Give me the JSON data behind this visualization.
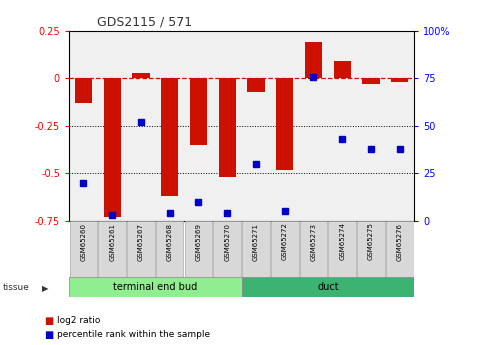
{
  "title": "GDS2115 / 571",
  "samples": [
    "GSM65260",
    "GSM65261",
    "GSM65267",
    "GSM65268",
    "GSM65269",
    "GSM65270",
    "GSM65271",
    "GSM65272",
    "GSM65273",
    "GSM65274",
    "GSM65275",
    "GSM65276"
  ],
  "log2_ratio": [
    -0.13,
    -0.73,
    0.03,
    -0.62,
    -0.35,
    -0.52,
    -0.07,
    -0.48,
    0.19,
    0.09,
    -0.03,
    -0.02
  ],
  "percentile_rank": [
    20,
    3,
    52,
    4,
    10,
    4,
    30,
    5,
    76,
    43,
    38,
    38
  ],
  "tissue_groups": [
    {
      "label": "terminal end bud",
      "start": 0,
      "end": 6,
      "color": "#90ee90"
    },
    {
      "label": "duct",
      "start": 6,
      "end": 12,
      "color": "#3cb371"
    }
  ],
  "ylim_left": [
    -0.75,
    0.25
  ],
  "ylim_right": [
    0,
    100
  ],
  "bar_color": "#cc1100",
  "dot_color": "#0000cc",
  "zero_line_color": "#cc1100",
  "hline_color": "#000000",
  "hlines": [
    -0.25,
    -0.5
  ],
  "right_ticks": [
    0,
    25,
    50,
    75,
    100
  ],
  "left_ticks": [
    -0.75,
    -0.5,
    -0.25,
    0,
    0.25
  ],
  "bg_color": "#ffffff",
  "plot_bg_color": "#f0f0f0",
  "legend_red_label": "log2 ratio",
  "legend_blue_label": "percentile rank within the sample",
  "tissue_label": "tissue",
  "tissue_label_color": "#333333",
  "left_tick_labels": [
    "-0.75",
    "-0.5",
    "-0.25",
    "0",
    "0.25"
  ],
  "right_tick_labels": [
    "0",
    "25",
    "50",
    "75",
    "100%"
  ]
}
